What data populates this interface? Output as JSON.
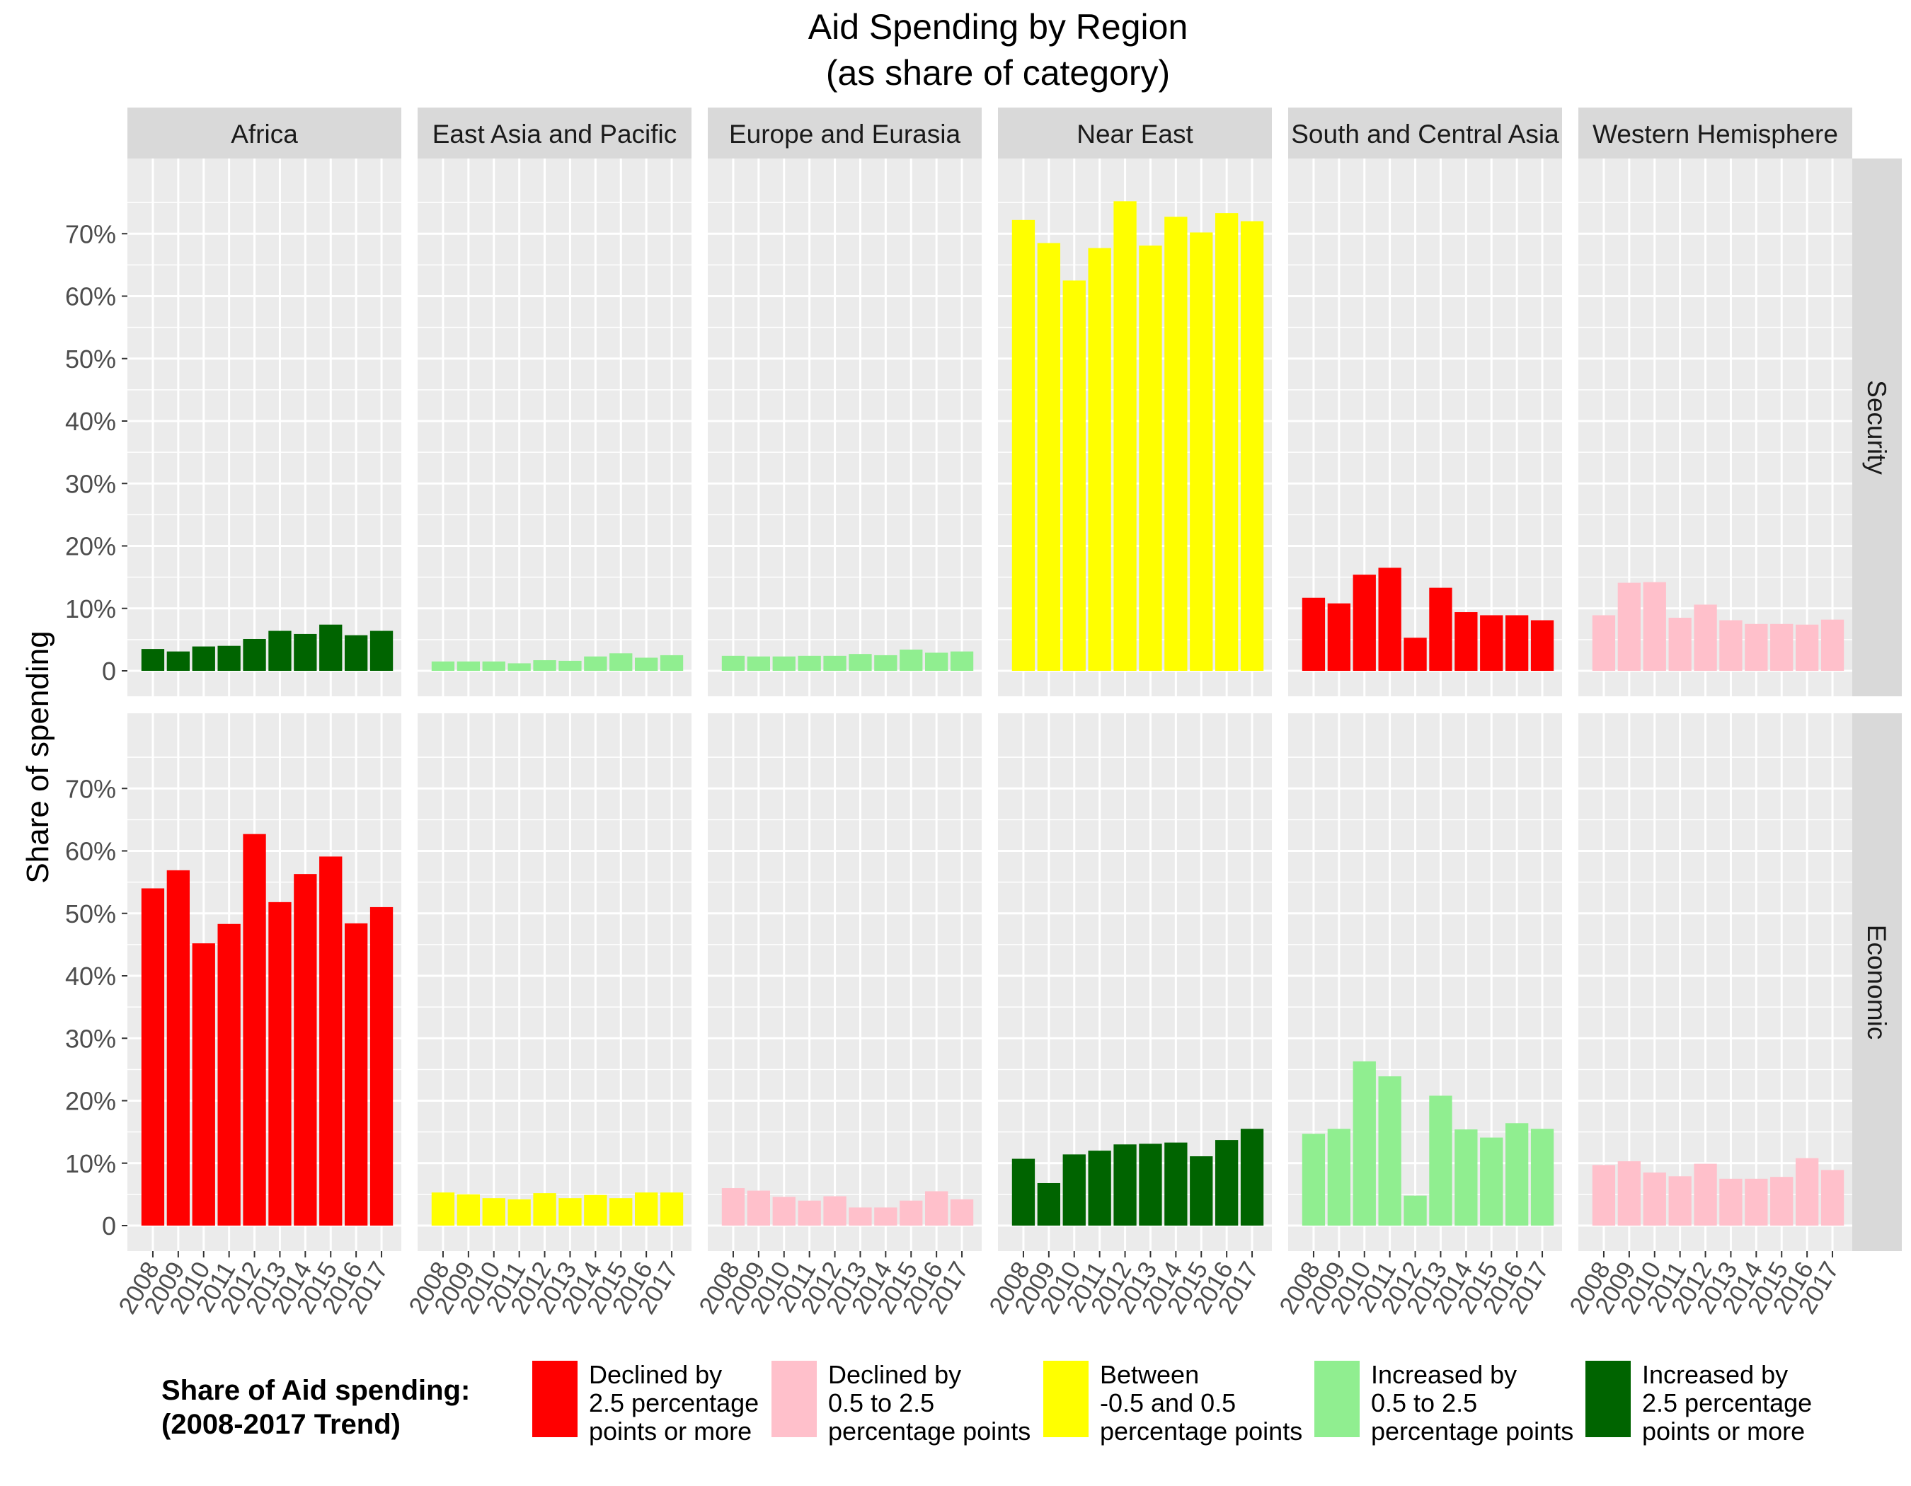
{
  "chart_data": {
    "type": "bar",
    "title": "Aid Spending by Region",
    "subtitle": "(as share of category)",
    "xlabel": "",
    "ylabel": "Share of spending",
    "ylim": [
      0,
      0.8
    ],
    "y_ticks": [
      0,
      0.1,
      0.2,
      0.3,
      0.4,
      0.5,
      0.6,
      0.7
    ],
    "y_tick_labels": [
      "0",
      "10%",
      "20%",
      "30%",
      "40%",
      "50%",
      "60%",
      "70%"
    ],
    "grid": true,
    "legend_position": "bottom",
    "categories": [
      "2008",
      "2009",
      "2010",
      "2011",
      "2012",
      "2013",
      "2014",
      "2015",
      "2016",
      "2017"
    ],
    "regions": [
      "Africa",
      "East Asia and Pacific",
      "Europe and Eurasia",
      "Near East",
      "South and Central Asia",
      "Western Hemisphere"
    ],
    "row_labels": [
      "Security",
      "Economic"
    ],
    "legend": {
      "title_line1": "Share of Aid spending:",
      "title_line2": "(2008-2017 Trend)",
      "entries": [
        {
          "key": "decl_large",
          "color": "#ff0000",
          "lines": [
            "Declined by",
            "2.5 percentage",
            "points or more"
          ]
        },
        {
          "key": "decl_small",
          "color": "#ffc0cb",
          "lines": [
            "Declined by",
            "0.5 to 2.5",
            "percentage points"
          ]
        },
        {
          "key": "flat",
          "color": "#ffff00",
          "lines": [
            "Between",
            "-0.5 and 0.5",
            "percentage points"
          ]
        },
        {
          "key": "inc_small",
          "color": "#90ee90",
          "lines": [
            "Increased by",
            "0.5 to 2.5",
            "percentage points"
          ]
        },
        {
          "key": "inc_large",
          "color": "#006400",
          "lines": [
            "Increased by",
            "2.5 percentage",
            "points or more"
          ]
        }
      ]
    },
    "panels": [
      {
        "row": "Security",
        "region": "Africa",
        "trend": "inc_large",
        "values": [
          0.035,
          0.031,
          0.039,
          0.04,
          0.051,
          0.064,
          0.059,
          0.074,
          0.057,
          0.064
        ]
      },
      {
        "row": "Security",
        "region": "East Asia and Pacific",
        "trend": "inc_small",
        "values": [
          0.015,
          0.015,
          0.015,
          0.012,
          0.017,
          0.016,
          0.023,
          0.028,
          0.021,
          0.025
        ]
      },
      {
        "row": "Security",
        "region": "Europe and Eurasia",
        "trend": "inc_small",
        "values": [
          0.024,
          0.023,
          0.023,
          0.024,
          0.024,
          0.027,
          0.025,
          0.034,
          0.029,
          0.031
        ]
      },
      {
        "row": "Security",
        "region": "Near East",
        "trend": "flat",
        "values": [
          0.722,
          0.685,
          0.625,
          0.677,
          0.752,
          0.681,
          0.727,
          0.702,
          0.733,
          0.72
        ]
      },
      {
        "row": "Security",
        "region": "South and Central Asia",
        "trend": "decl_large",
        "values": [
          0.117,
          0.108,
          0.154,
          0.165,
          0.053,
          0.133,
          0.094,
          0.089,
          0.089,
          0.081
        ]
      },
      {
        "row": "Security",
        "region": "Western Hemisphere",
        "trend": "decl_small",
        "values": [
          0.089,
          0.141,
          0.142,
          0.085,
          0.106,
          0.081,
          0.075,
          0.075,
          0.074,
          0.082
        ]
      },
      {
        "row": "Economic",
        "region": "Africa",
        "trend": "decl_large",
        "values": [
          0.54,
          0.569,
          0.452,
          0.483,
          0.627,
          0.518,
          0.563,
          0.591,
          0.484,
          0.51
        ]
      },
      {
        "row": "Economic",
        "region": "East Asia and Pacific",
        "trend": "flat",
        "values": [
          0.053,
          0.05,
          0.044,
          0.042,
          0.052,
          0.044,
          0.049,
          0.044,
          0.053,
          0.053
        ]
      },
      {
        "row": "Economic",
        "region": "Europe and Eurasia",
        "trend": "decl_small",
        "values": [
          0.06,
          0.056,
          0.046,
          0.04,
          0.047,
          0.029,
          0.029,
          0.04,
          0.055,
          0.042
        ]
      },
      {
        "row": "Economic",
        "region": "Near East",
        "trend": "inc_large",
        "values": [
          0.107,
          0.068,
          0.114,
          0.12,
          0.13,
          0.131,
          0.133,
          0.111,
          0.137,
          0.155
        ]
      },
      {
        "row": "Economic",
        "region": "South and Central Asia",
        "trend": "inc_small",
        "values": [
          0.147,
          0.155,
          0.263,
          0.239,
          0.048,
          0.208,
          0.154,
          0.141,
          0.164,
          0.155
        ]
      },
      {
        "row": "Economic",
        "region": "Western Hemisphere",
        "trend": "decl_small",
        "values": [
          0.097,
          0.103,
          0.085,
          0.079,
          0.099,
          0.075,
          0.075,
          0.078,
          0.108,
          0.089
        ]
      }
    ]
  }
}
